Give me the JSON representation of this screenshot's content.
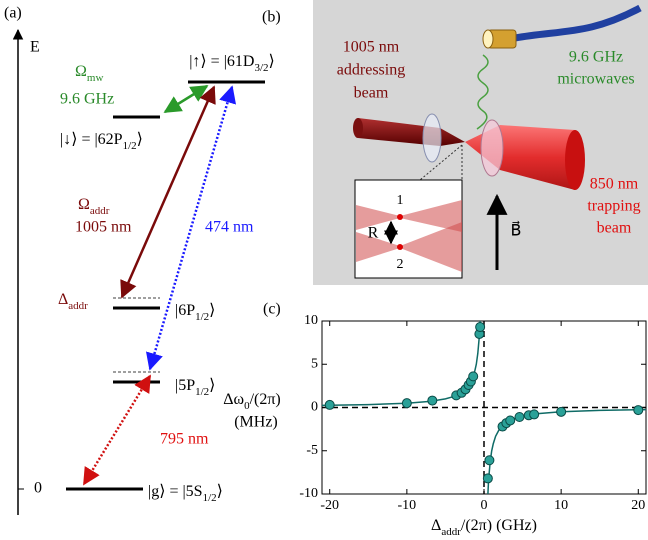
{
  "panel_a": {
    "label": "(a)",
    "axis": "E",
    "zero": "0",
    "omega_mw": [
      "Ω",
      "mw"
    ],
    "mw_freq": "9.6 GHz",
    "up_state": [
      "|↑⟩ = |61D",
      "3/2",
      "⟩"
    ],
    "down_state": [
      "|↓⟩ = |62P",
      "1/2",
      "⟩"
    ],
    "omega_addr": [
      "Ω",
      "addr"
    ],
    "addr_wavelength": "1005 nm",
    "blue_wavelength": "474 nm",
    "delta_addr": [
      "Δ",
      "addr"
    ],
    "p6_state": [
      "|6P",
      "1/2",
      "⟩"
    ],
    "p5_state": [
      "|5P",
      "1/2",
      "⟩"
    ],
    "red_wavelength": "795 nm",
    "ground_state": [
      "|g⟩ = |5S",
      "1/2",
      "⟩"
    ]
  },
  "panel_b": {
    "label": "(b)",
    "addressing": [
      "1005 nm",
      "addressing",
      "beam"
    ],
    "microwaves": [
      "9.6 GHz",
      "microwaves"
    ],
    "trapping": [
      "850 nm",
      "trapping",
      "beam"
    ],
    "atom_1": "1",
    "atom_2": "2",
    "distance": "R",
    "field": "B⃗"
  },
  "panel_label_c": "(c)",
  "chart_data": {
    "type": "scatter",
    "ylabel": [
      "Δω",
      "0",
      "/(2π)"
    ],
    "yunit": "(MHz)",
    "xlabel": [
      "Δ",
      "addr",
      "/(2π) (GHz)"
    ],
    "xlim": [
      -21,
      21
    ],
    "ylim": [
      -10,
      10
    ],
    "xticks": [
      -20,
      -10,
      0,
      10,
      20
    ],
    "yticks": [
      -10,
      -5,
      0,
      5,
      10
    ],
    "reference_lines": {
      "x": 0,
      "y": 0
    },
    "points": {
      "color": "#2aa198",
      "x": [
        -20,
        -10,
        -6.7,
        -3.6,
        -2.9,
        -2.4,
        -2,
        -1.7,
        -1.4,
        -0.6,
        -0.5,
        0.5,
        0.7,
        2.4,
        2.9,
        3.4,
        4.6,
        5.8,
        6.5,
        10,
        20
      ],
      "values": [
        0.3,
        0.5,
        0.8,
        1.4,
        1.7,
        2.1,
        2.6,
        3,
        3.6,
        8.5,
        9.3,
        -8.2,
        -6.1,
        -2.2,
        -1.8,
        -1.5,
        -1.1,
        -0.9,
        -0.8,
        -0.5,
        -0.3
      ]
    },
    "fit": {
      "color": "#0f6b66",
      "x": [
        -21,
        -15,
        -10,
        -7,
        -5,
        -4,
        -3,
        -2.5,
        -2,
        -1.5,
        -1.2,
        -1,
        -0.8,
        -0.6,
        -0.5,
        0,
        0.5,
        0.6,
        0.8,
        1,
        1.2,
        1.5,
        2,
        2.5,
        3,
        4,
        5,
        7,
        10,
        15,
        21
      ],
      "values": [
        0.24,
        0.33,
        0.5,
        0.71,
        1,
        1.25,
        1.67,
        2,
        2.5,
        3.33,
        4.17,
        5,
        6.25,
        8.33,
        10,
        null,
        -10,
        -8.33,
        -6.25,
        -5,
        -4.17,
        -3.33,
        -2.5,
        -2,
        -1.67,
        -1.25,
        -1,
        -0.71,
        -0.5,
        -0.33,
        -0.24
      ]
    }
  }
}
